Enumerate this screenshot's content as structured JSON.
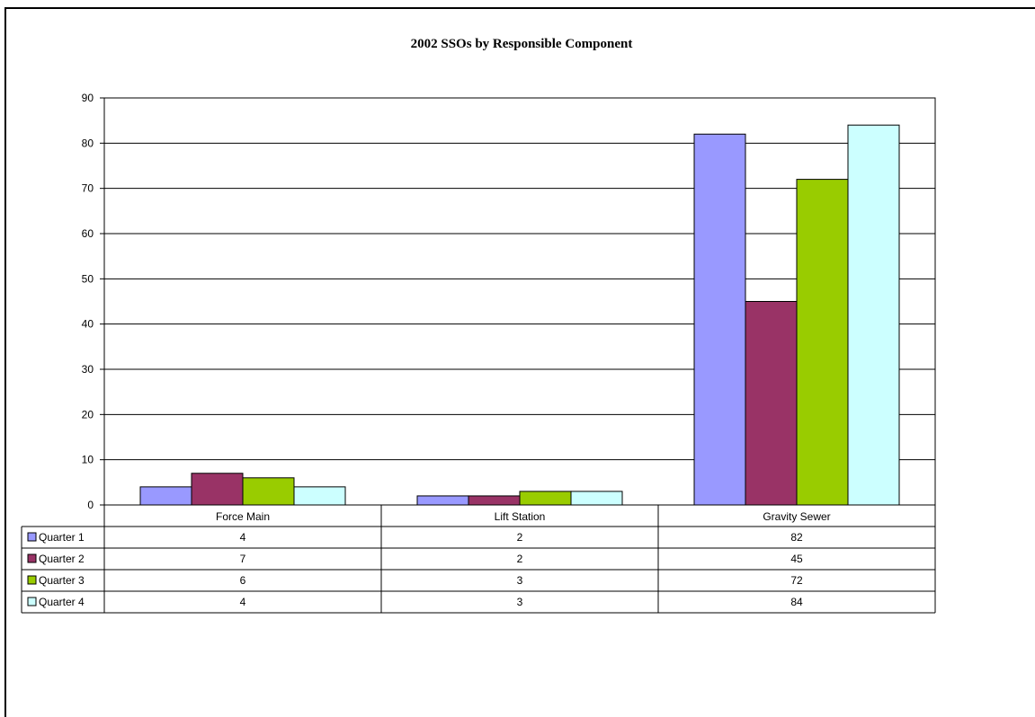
{
  "chart_data": {
    "type": "bar",
    "title": "2002 SSOs by Responsible Component",
    "categories": [
      "Force Main",
      "Lift Station",
      "Gravity Sewer"
    ],
    "series": [
      {
        "name": "Quarter 1",
        "values": [
          4,
          2,
          82
        ],
        "color": "#9999FF"
      },
      {
        "name": "Quarter 2",
        "values": [
          7,
          2,
          45
        ],
        "color": "#993366"
      },
      {
        "name": "Quarter 3",
        "values": [
          6,
          3,
          72
        ],
        "color": "#99CC00"
      },
      {
        "name": "Quarter 4",
        "values": [
          4,
          3,
          84
        ],
        "color": "#CCFFFF"
      }
    ],
    "ylim": [
      0,
      90
    ],
    "yticks": [
      0,
      10,
      20,
      30,
      40,
      50,
      60,
      70,
      80,
      90
    ],
    "grid": true,
    "legend": "data-table",
    "data_table": true
  }
}
